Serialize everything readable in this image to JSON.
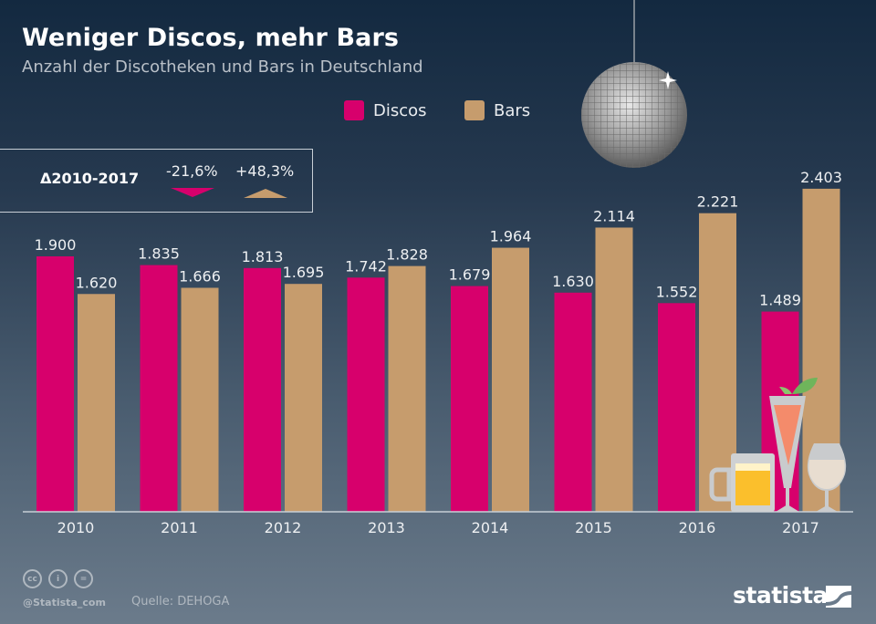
{
  "header": {
    "title": "Weniger Discos, mehr Bars",
    "subtitle": "Anzahl der Discotheken und Bars in Deutschland"
  },
  "legend": [
    {
      "label": "Discos",
      "color": "#d7006c"
    },
    {
      "label": "Bars",
      "color": "#c69c6d"
    }
  ],
  "delta": {
    "label": "Δ2010-2017",
    "discos": "-21,6%",
    "bars": "+48,3%"
  },
  "footer": {
    "handle": "@Statista_com",
    "source": "Quelle: DEHOGA",
    "brand": "statista",
    "license_icons": [
      "cc-icon",
      "by-icon",
      "nd-icon"
    ]
  },
  "colors": {
    "discos": "#d7006c",
    "bars": "#c69c6d",
    "axis": "#c8cfd6"
  },
  "chart_data": {
    "type": "bar",
    "title": "Weniger Discos, mehr Bars",
    "subtitle": "Anzahl der Discotheken und Bars in Deutschland",
    "xlabel": "",
    "ylabel": "",
    "categories": [
      "2010",
      "2011",
      "2012",
      "2013",
      "2014",
      "2015",
      "2016",
      "2017"
    ],
    "series": [
      {
        "name": "Discos",
        "values": [
          1900,
          1835,
          1813,
          1742,
          1679,
          1630,
          1552,
          1489
        ],
        "labels": [
          "1.900",
          "1.835",
          "1.813",
          "1.742",
          "1.679",
          "1.630",
          "1.552",
          "1.489"
        ]
      },
      {
        "name": "Bars",
        "values": [
          1620,
          1666,
          1695,
          1828,
          1964,
          2114,
          2221,
          2403
        ],
        "labels": [
          "1.620",
          "1.666",
          "1.695",
          "1.828",
          "1.964",
          "2.114",
          "2.221",
          "2.403"
        ]
      }
    ],
    "ylim": [
      0,
      2403
    ],
    "grid": false,
    "legend_position": "top-center"
  }
}
